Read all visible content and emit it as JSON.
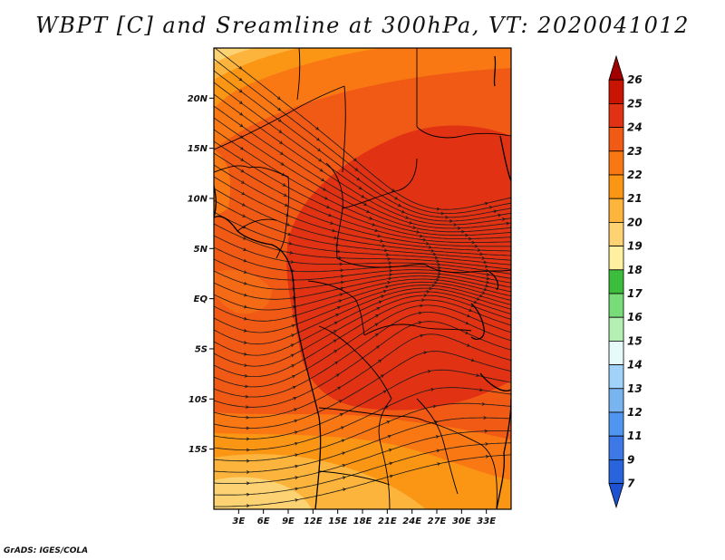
{
  "title": "WBPT [C] and Sreamline at 300hPa, VT: 2020041012",
  "credit": "GrADS: IGES/COLA",
  "map": {
    "lat_range": [
      -21,
      25
    ],
    "lon_range": [
      0,
      36
    ],
    "lat_labels": [
      {
        "lat": 20,
        "label": "20N"
      },
      {
        "lat": 15,
        "label": "15N"
      },
      {
        "lat": 10,
        "label": "10N"
      },
      {
        "lat": 5,
        "label": "5N"
      },
      {
        "lat": 0,
        "label": "EQ"
      },
      {
        "lat": -5,
        "label": "5S"
      },
      {
        "lat": -10,
        "label": "10S"
      },
      {
        "lat": -15,
        "label": "15S"
      }
    ],
    "lon_labels": [
      {
        "lon": 3,
        "label": "3E"
      },
      {
        "lon": 6,
        "label": "6E"
      },
      {
        "lon": 9,
        "label": "9E"
      },
      {
        "lon": 12,
        "label": "12E"
      },
      {
        "lon": 15,
        "label": "15E"
      },
      {
        "lon": 18,
        "label": "18E"
      },
      {
        "lon": 21,
        "label": "21E"
      },
      {
        "lon": 24,
        "label": "24E"
      },
      {
        "lon": 27,
        "label": "27E"
      },
      {
        "lon": 30,
        "label": "30E"
      },
      {
        "lon": 33,
        "label": "33E"
      }
    ]
  },
  "colorbar": {
    "levels": [
      {
        "label": "26",
        "color": "#a00000"
      },
      {
        "label": "25",
        "color": "#c81400"
      },
      {
        "label": "24",
        "color": "#e13214"
      },
      {
        "label": "23",
        "color": "#f05a14"
      },
      {
        "label": "22",
        "color": "#fa7814"
      },
      {
        "label": "21",
        "color": "#fa9614"
      },
      {
        "label": "20",
        "color": "#fcb43c"
      },
      {
        "label": "19",
        "color": "#fcd272"
      },
      {
        "label": "18",
        "color": "#fff0a0"
      },
      {
        "label": "17",
        "color": "#3cbe3c"
      },
      {
        "label": "16",
        "color": "#78dc78"
      },
      {
        "label": "15",
        "color": "#b4f0b4"
      },
      {
        "label": "14",
        "color": "#e6fafa"
      },
      {
        "label": "13",
        "color": "#a0d2fa"
      },
      {
        "label": "12",
        "color": "#78b4f0"
      },
      {
        "label": "11",
        "color": "#5096f0"
      },
      {
        "label": "9",
        "color": "#3c78e6"
      },
      {
        "label": "7",
        "color": "#2864dc"
      }
    ],
    "below_color": "#1e50d2"
  }
}
